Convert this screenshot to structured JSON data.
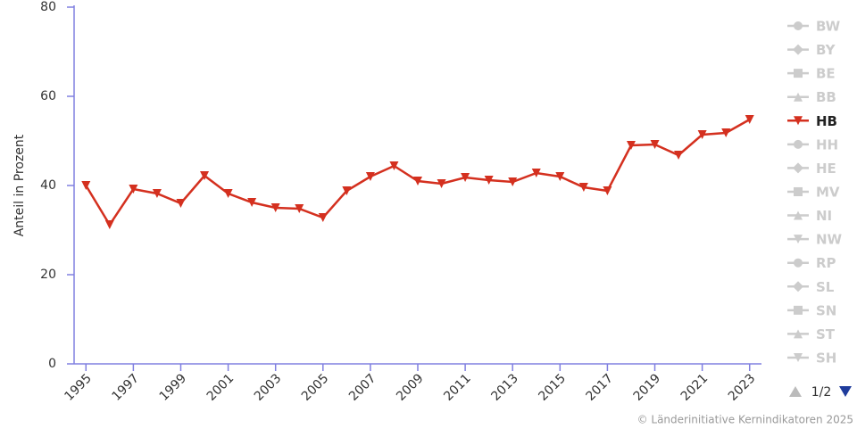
{
  "chart_data": {
    "type": "line",
    "y_axis_label": "Anteil in Prozent",
    "x": [
      1995,
      1996,
      1997,
      1998,
      1999,
      2000,
      2001,
      2002,
      2003,
      2004,
      2005,
      2006,
      2007,
      2008,
      2009,
      2010,
      2011,
      2012,
      2013,
      2014,
      2015,
      2016,
      2017,
      2018,
      2019,
      2020,
      2021,
      2022,
      2023
    ],
    "series": [
      {
        "name": "BW",
        "marker": "circle",
        "visible": false
      },
      {
        "name": "BY",
        "marker": "diamond",
        "visible": false
      },
      {
        "name": "BE",
        "marker": "square",
        "visible": false
      },
      {
        "name": "BB",
        "marker": "triangle",
        "visible": false
      },
      {
        "name": "HB",
        "marker": "triangle-down",
        "visible": true,
        "color": "#d4301f",
        "values": [
          40,
          31.2,
          39.2,
          38.2,
          36,
          42.2,
          38.2,
          36.2,
          35,
          34.8,
          32.8,
          38.8,
          42,
          44.4,
          41,
          40.4,
          41.8,
          41.2,
          40.8,
          42.8,
          42,
          39.6,
          38.8,
          49,
          49.2,
          46.8,
          51.4,
          51.8,
          54.8
        ]
      },
      {
        "name": "HH",
        "marker": "circle",
        "visible": false
      },
      {
        "name": "HE",
        "marker": "diamond",
        "visible": false
      },
      {
        "name": "MV",
        "marker": "square",
        "visible": false
      },
      {
        "name": "NI",
        "marker": "triangle",
        "visible": false
      },
      {
        "name": "NW",
        "marker": "triangle-down",
        "visible": false
      },
      {
        "name": "RP",
        "marker": "circle",
        "visible": false
      },
      {
        "name": "SL",
        "marker": "diamond",
        "visible": false
      },
      {
        "name": "SN",
        "marker": "square",
        "visible": false
      },
      {
        "name": "ST",
        "marker": "triangle",
        "visible": false
      },
      {
        "name": "SH",
        "marker": "triangle-down",
        "visible": false
      }
    ],
    "xlim": [
      1994.5,
      2023.5
    ],
    "xticks": [
      1995,
      1997,
      1999,
      2001,
      2003,
      2005,
      2007,
      2009,
      2011,
      2013,
      2015,
      2017,
      2019,
      2021,
      2023
    ],
    "ylim": [
      0,
      80
    ],
    "yticks": [
      0,
      20,
      40,
      60,
      80
    ],
    "legend_page": "1/2",
    "credit": "© Länderinitiative Kernindikatoren 2025"
  }
}
